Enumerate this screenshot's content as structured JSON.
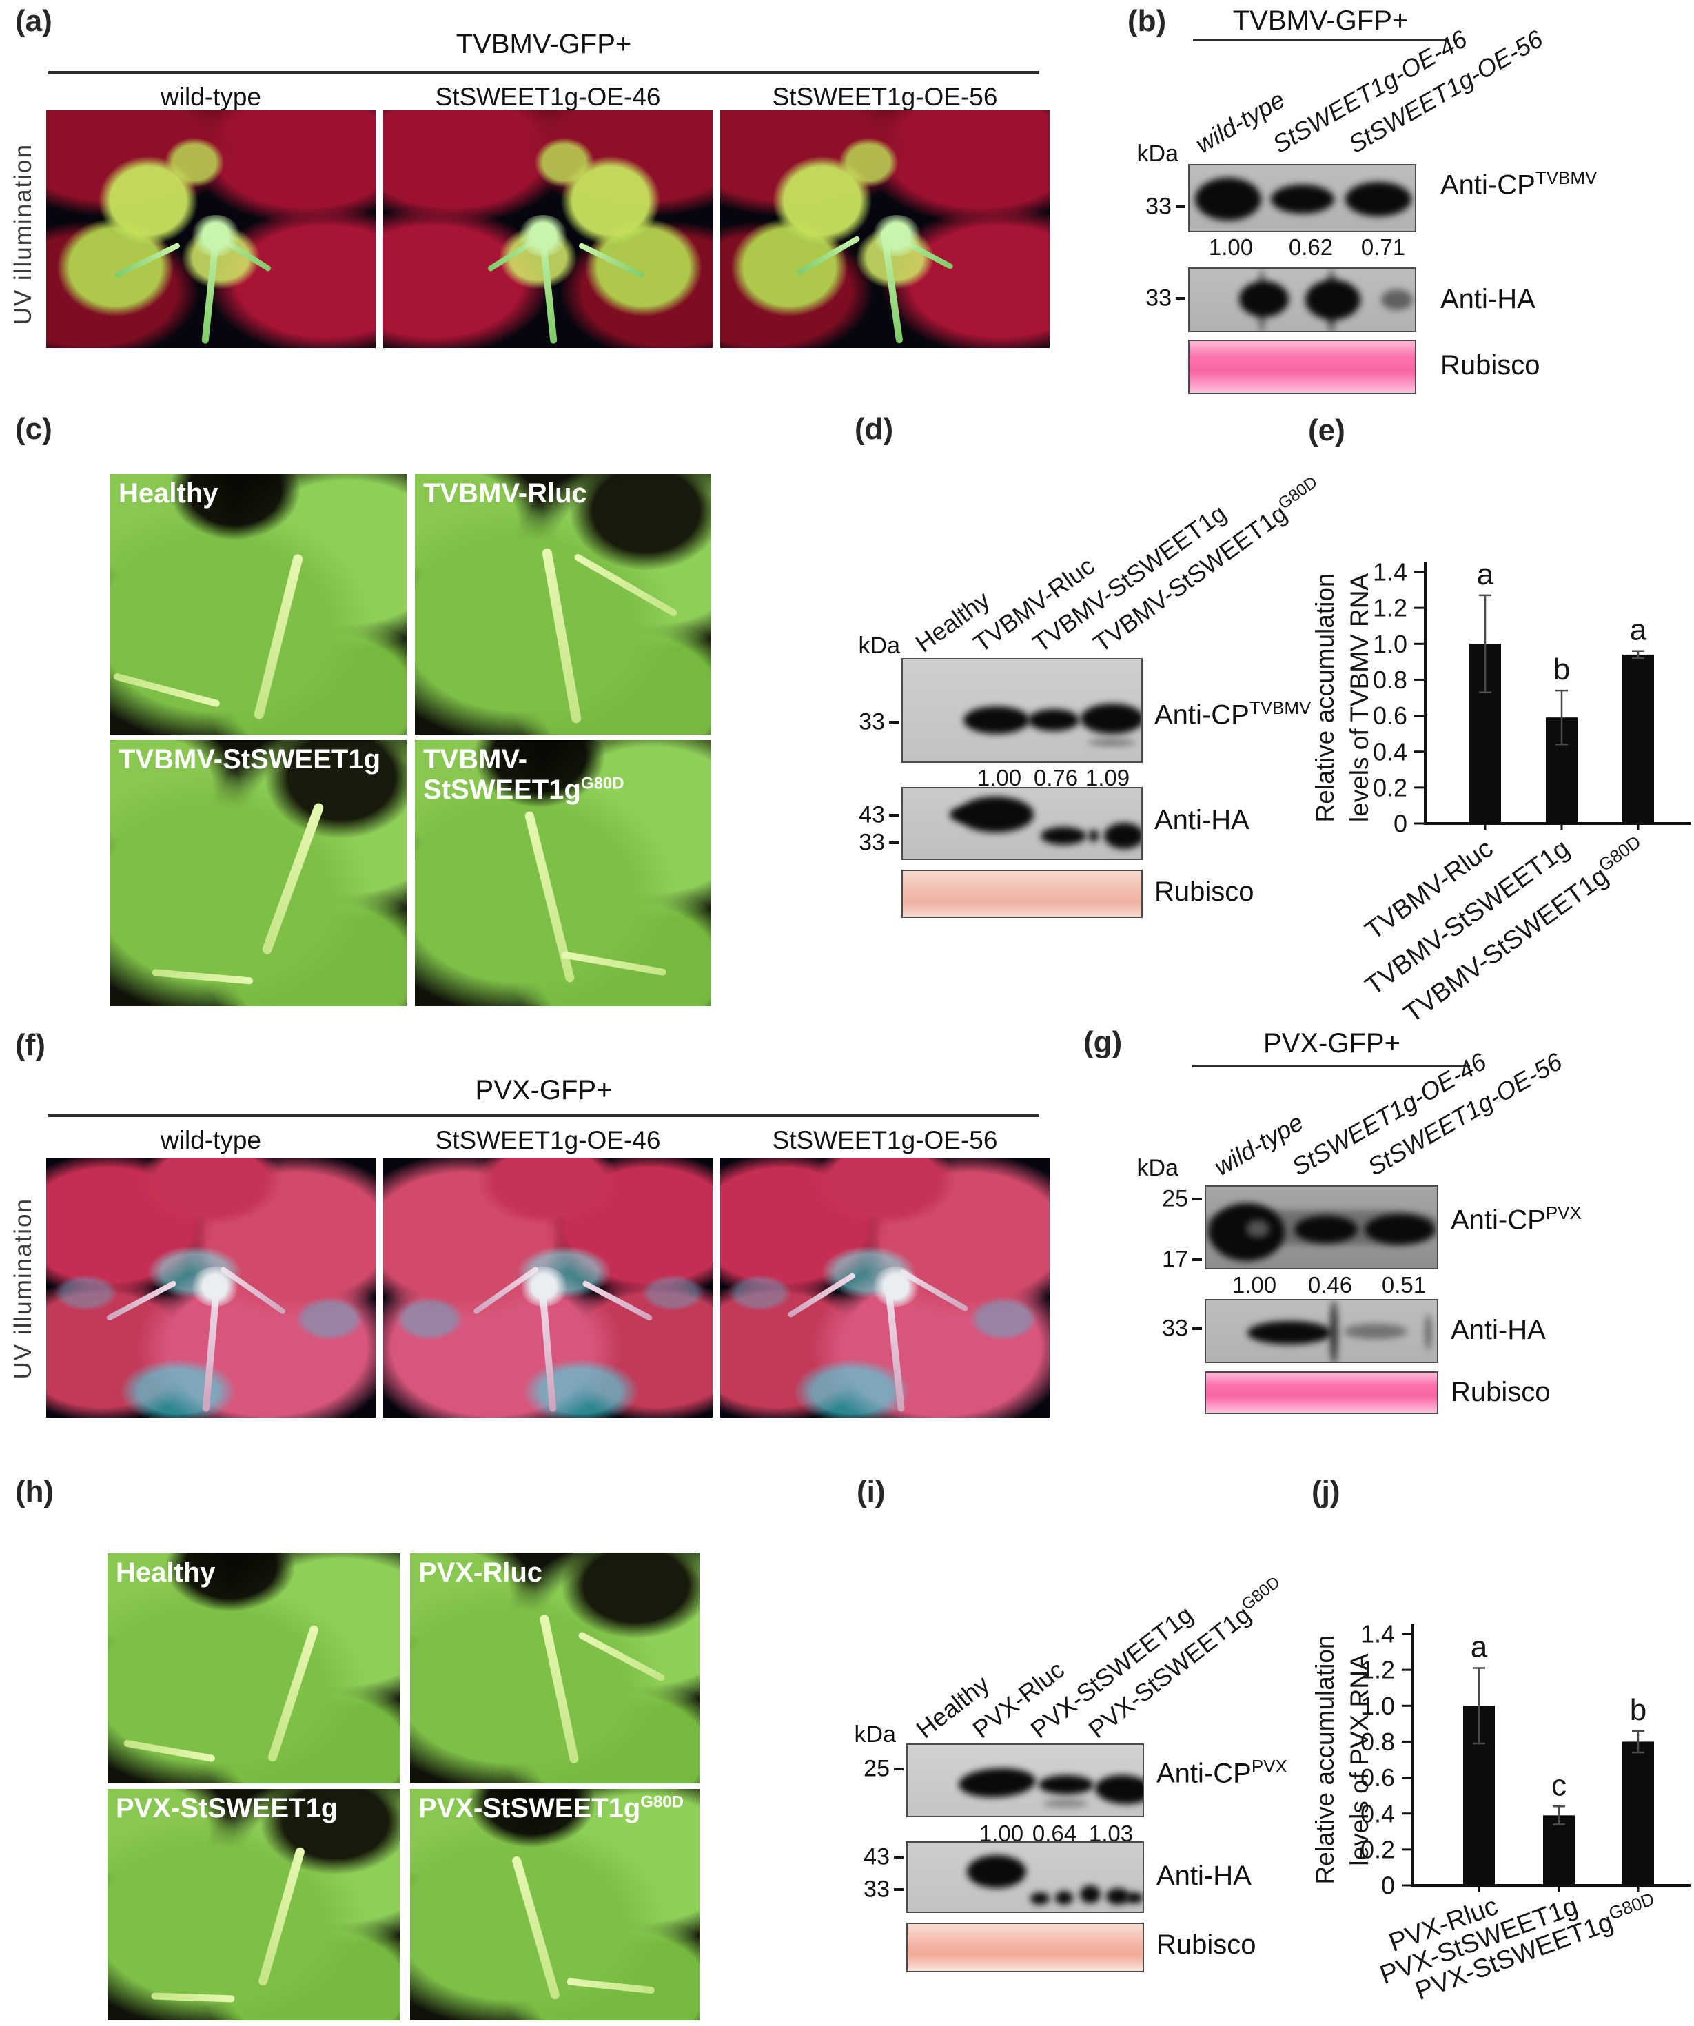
{
  "colors": {
    "blot_bg": "#b9b9b9",
    "blot_dark_bg": "#9a9a9a",
    "rubisco_bright": "#fa73ad",
    "rubisco_pale": "#f2bdb0",
    "bar_fill": "#0c0c0c",
    "leaf_red": "#9c1130",
    "leaf_pink": "#d14a6a",
    "leaf_green": "#7dbf47"
  },
  "a": {
    "tag": "(a)",
    "title": "TVBMV-GFP+",
    "side": "UV illumination",
    "cols": [
      "wild-type",
      "StSWEET1g-OE-46",
      "StSWEET1g-OE-56"
    ]
  },
  "b": {
    "tag": "(b)",
    "title": "TVBMV-GFP+",
    "kda": "kDa",
    "lanes": [
      "wild-type",
      "StSWEET1g-OE-46",
      "StSWEET1g-OE-56"
    ],
    "m1": "33",
    "m2": "33",
    "vals": [
      "1.00",
      "0.62",
      "0.71"
    ],
    "ab1": "Anti-CP",
    "ab1s": "TVBMV",
    "ab2": "Anti-HA",
    "ab3": "Rubisco"
  },
  "c": {
    "tag": "(c)",
    "p": [
      {
        "l": "Healthy",
        "s": ""
      },
      {
        "l": "TVBMV-Rluc",
        "s": ""
      },
      {
        "l": "TVBMV-StSWEET1g",
        "s": ""
      },
      {
        "l": "TVBMV-StSWEET1g",
        "s": "G80D"
      }
    ]
  },
  "d": {
    "tag": "(d)",
    "kda": "kDa",
    "lanes": [
      {
        "l": "Healthy",
        "s": ""
      },
      {
        "l": "TVBMV-Rluc",
        "s": ""
      },
      {
        "l": "TVBMV-StSWEET1g",
        "s": ""
      },
      {
        "l": "TVBMV-StSWEET1g",
        "s": "G80D"
      }
    ],
    "m1": "33",
    "m2a": "43",
    "m2b": "33",
    "vals": [
      "1.00",
      "0.76",
      "1.09"
    ],
    "ab1": "Anti-CP",
    "ab1s": "TVBMV",
    "ab2": "Anti-HA",
    "ab3": "Rubisco"
  },
  "e": {
    "tag": "(e)"
  },
  "f": {
    "tag": "(f)",
    "title": "PVX-GFP+",
    "side": "UV illumination",
    "cols": [
      "wild-type",
      "StSWEET1g-OE-46",
      "StSWEET1g-OE-56"
    ]
  },
  "g": {
    "tag": "(g)",
    "title": "PVX-GFP+",
    "kda": "kDa",
    "lanes": [
      "wild-type",
      "StSWEET1g-OE-46",
      "StSWEET1g-OE-56"
    ],
    "m1a": "25",
    "m1b": "17",
    "m2": "33",
    "vals": [
      "1.00",
      "0.46",
      "0.51"
    ],
    "ab1": "Anti-CP",
    "ab1s": "PVX",
    "ab2": "Anti-HA",
    "ab3": "Rubisco"
  },
  "h": {
    "tag": "(h)",
    "p": [
      {
        "l": "Healthy",
        "s": ""
      },
      {
        "l": "PVX-Rluc",
        "s": ""
      },
      {
        "l": "PVX-StSWEET1g",
        "s": ""
      },
      {
        "l": "PVX-StSWEET1g",
        "s": "G80D"
      }
    ]
  },
  "i": {
    "tag": "(i)",
    "kda": "kDa",
    "lanes": [
      {
        "l": "Healthy",
        "s": ""
      },
      {
        "l": "PVX-Rluc",
        "s": ""
      },
      {
        "l": "PVX-StSWEET1g",
        "s": ""
      },
      {
        "l": "PVX-StSWEET1g",
        "s": "G80D"
      }
    ],
    "m1": "25",
    "m2a": "43",
    "m2b": "33",
    "vals": [
      "1.00",
      "0.64",
      "1.03"
    ],
    "ab1": "Anti-CP",
    "ab1s": "PVX",
    "ab2": "Anti-HA",
    "ab3": "Rubisco"
  },
  "j": {
    "tag": "(j)"
  },
  "chart_data": [
    {
      "type": "bar",
      "panel": "e",
      "title": "",
      "xlabel": "",
      "ylabel": "Relative accumulation levels of TVBMV RNA",
      "ylabel_lines": [
        "Relative accumulation",
        "levels of TVBMV RNA"
      ],
      "categories": [
        "TVBMV-Rluc",
        "TVBMV-StSWEET1g",
        "TVBMV-StSWEET1g"
      ],
      "category_sups": [
        "",
        "",
        "G80D"
      ],
      "values": [
        1.0,
        0.59,
        0.94
      ],
      "errors": [
        0.27,
        0.15,
        0.02
      ],
      "sig_letters": [
        "a",
        "b",
        "a"
      ],
      "ylim": [
        0,
        1.4
      ],
      "ytick_labels": [
        "0",
        "0.2",
        "0.4",
        "0.6",
        "0.8",
        "1.0",
        "1.2",
        "1.4"
      ],
      "grid": false,
      "legend": null
    },
    {
      "type": "bar",
      "panel": "j",
      "title": "",
      "xlabel": "",
      "ylabel": "Relative accumulation levels of PVX RNA",
      "ylabel_lines": [
        "Relative accumulation",
        "levels of PVX RNA"
      ],
      "categories": [
        "PVX-Rluc",
        "PVX-StSWEET1g",
        "PVX-StSWEET1g"
      ],
      "category_sups": [
        "",
        "",
        "G80D"
      ],
      "values": [
        1.0,
        0.39,
        0.8
      ],
      "errors": [
        0.21,
        0.05,
        0.06
      ],
      "sig_letters": [
        "a",
        "c",
        "b"
      ],
      "ylim": [
        0,
        1.4
      ],
      "ytick_labels": [
        "0",
        "0.2",
        "0.4",
        "0.6",
        "0.8",
        "1.0",
        "1.2",
        "1.4"
      ],
      "grid": false,
      "legend": null
    }
  ]
}
